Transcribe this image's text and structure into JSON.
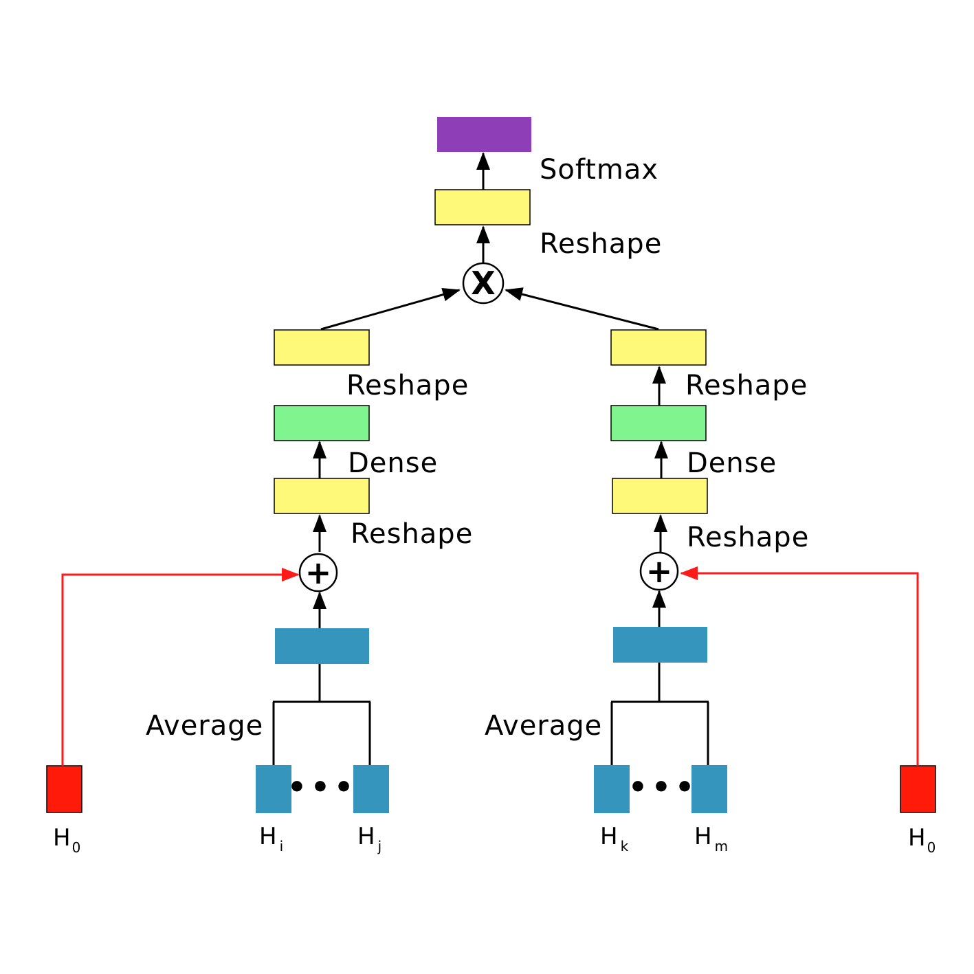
{
  "colors": {
    "output": "#8e3fb8",
    "reshape": "#fff97a",
    "dense": "#80f58f",
    "average": "#3595bd",
    "input": "#3595bd",
    "h0": "#ff1a0a",
    "connector": "#ff1a1a",
    "line": "#000000"
  },
  "labels": {
    "softmax": "Softmax",
    "top_reshape": "Reshape",
    "left_reshape_upper": "Reshape",
    "left_dense": "Dense",
    "left_reshape_lower": "Reshape",
    "right_reshape_upper": "Reshape",
    "right_dense": "Dense",
    "right_reshape_lower": "Reshape",
    "left_average": "Average",
    "right_average": "Average"
  },
  "operators": {
    "multiply": "X",
    "left_add": "+",
    "right_add": "+"
  },
  "inputs": {
    "left_h0": {
      "main": "H",
      "sub": "0"
    },
    "hi": {
      "main": "H",
      "sub": "i"
    },
    "hj": {
      "main": "H",
      "sub": "j"
    },
    "hk": {
      "main": "H",
      "sub": "k"
    },
    "hm": {
      "main": "H",
      "sub": "m"
    },
    "right_h0": {
      "main": "H",
      "sub": "0"
    }
  },
  "ellipsis": {
    "left": "•••",
    "right": "•••"
  }
}
